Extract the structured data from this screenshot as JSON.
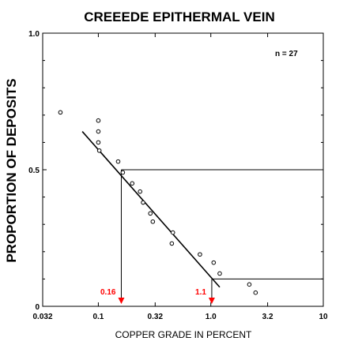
{
  "chart_data": {
    "type": "scatter",
    "title": "CREEEDE EPITHERMAL VEIN",
    "xlabel": "COPPER GRADE IN PERCENT",
    "ylabel": "PROPORTION OF DEPOSITS",
    "x_scale": "log",
    "xlim": [
      0.032,
      10
    ],
    "ylim": [
      0,
      1
    ],
    "x_ticks": [
      0.032,
      0.1,
      0.32,
      1.0,
      3.2,
      10
    ],
    "x_tick_labels": [
      "0.032",
      "0.1",
      "0.32",
      "1.0",
      "3.2",
      "10"
    ],
    "y_ticks": [
      0,
      0.5,
      1
    ],
    "y_tick_labels": [
      "0",
      "0.5",
      "1.0"
    ],
    "grid": false,
    "annotation_n": "n = 27",
    "accent_color": "#ff0000",
    "series": [
      {
        "type": "scatter",
        "marker": "open-circle",
        "points": [
          [
            0.046,
            0.71
          ],
          [
            0.1,
            0.68
          ],
          [
            0.1,
            0.64
          ],
          [
            0.1,
            0.6
          ],
          [
            0.102,
            0.57
          ],
          [
            0.15,
            0.53
          ],
          [
            0.165,
            0.49
          ],
          [
            0.2,
            0.45
          ],
          [
            0.235,
            0.42
          ],
          [
            0.25,
            0.38
          ],
          [
            0.29,
            0.34
          ],
          [
            0.305,
            0.31
          ],
          [
            0.46,
            0.27
          ],
          [
            0.45,
            0.23
          ],
          [
            0.8,
            0.19
          ],
          [
            1.06,
            0.16
          ],
          [
            1.2,
            0.12
          ],
          [
            2.2,
            0.08
          ],
          [
            2.5,
            0.05
          ]
        ]
      },
      {
        "type": "line",
        "points": [
          [
            0.072,
            0.64
          ],
          [
            1.2,
            0.07
          ]
        ]
      }
    ],
    "reference_lines": [
      {
        "label": "0.16",
        "x": 0.16,
        "y": 0.5
      },
      {
        "label": "1.1",
        "x": 1.02,
        "y": 0.1
      }
    ]
  }
}
